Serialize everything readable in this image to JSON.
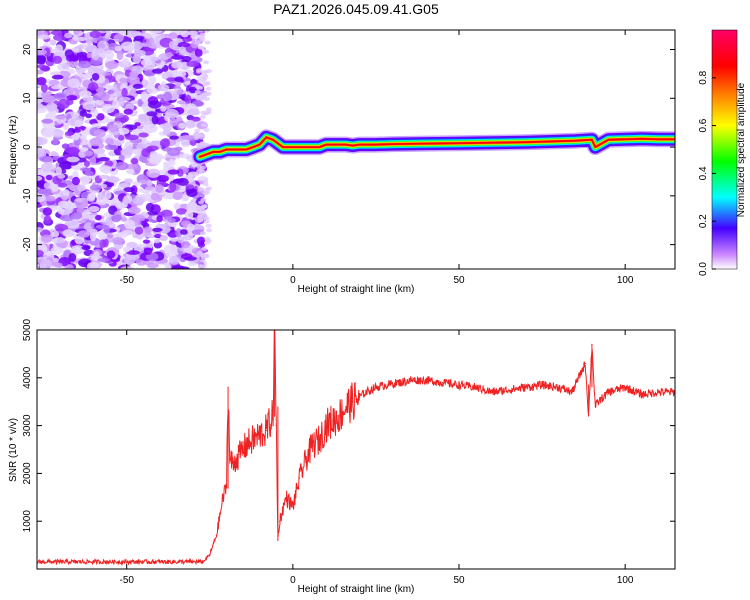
{
  "title": "PAZ1.2026.045.09.41.G05",
  "chart_data": [
    {
      "type": "heatmap",
      "name": "spectrogram",
      "xlabel": "Height of straight line (km)",
      "ylabel": "Frequency (Hz)",
      "xlim": [
        -77,
        115
      ],
      "ylim": [
        -25,
        24
      ],
      "xticks": [
        "-50",
        "0",
        "50",
        "100"
      ],
      "xtick_values": [
        -50,
        0,
        50,
        100
      ],
      "yticks": [
        "20",
        "10",
        "0",
        "-10",
        "-20"
      ],
      "ytick_values": [
        20,
        10,
        0,
        -10,
        -20
      ],
      "noise_region_km": [
        -77,
        -27
      ],
      "signal_track": {
        "x": [
          -28,
          -26,
          -24,
          -22,
          -20,
          -18,
          -16,
          -14,
          -12,
          -10,
          -8,
          -6,
          -5,
          -3,
          -1,
          1,
          3,
          5,
          8,
          10,
          12,
          14,
          16,
          18,
          20,
          25,
          30,
          40,
          50,
          60,
          70,
          80,
          85,
          90,
          91,
          95,
          100,
          105,
          110,
          115
        ],
        "y": [
          -2,
          -1.5,
          -1,
          -1,
          -0.5,
          -0.5,
          -0.5,
          -0.5,
          0,
          0.5,
          2,
          1.5,
          1,
          0,
          0,
          0,
          0,
          0,
          0,
          0.5,
          0.5,
          0.5,
          0.5,
          0.3,
          0.5,
          0.5,
          0.6,
          0.7,
          0.8,
          0.9,
          1.0,
          1.2,
          1.3,
          1.5,
          0,
          1.5,
          1.6,
          1.7,
          1.6,
          1.6
        ]
      },
      "colorbar": {
        "label": "Normalized spectral amplitude",
        "ticks": [
          "0.0",
          "0.2",
          "0.4",
          "0.6",
          "0.8"
        ],
        "tick_values": [
          0.0,
          0.2,
          0.4,
          0.6,
          0.8
        ],
        "range": [
          0,
          1
        ],
        "colors": [
          "#ffffff",
          "#cc88ff",
          "#4400ff",
          "#00ffff",
          "#00ff00",
          "#ffff00",
          "#ff8800",
          "#ff0000",
          "#ff0066"
        ]
      }
    },
    {
      "type": "line",
      "name": "snr",
      "xlabel": "Height of straight line (km)",
      "ylabel": "SNR (10 * v/v)",
      "xlim": [
        -77,
        115
      ],
      "ylim": [
        0,
        5000
      ],
      "xticks": [
        "-50",
        "0",
        "50",
        "100"
      ],
      "xtick_values": [
        -50,
        0,
        50,
        100
      ],
      "yticks": [
        "5000",
        "4000",
        "3000",
        "2000",
        "1000"
      ],
      "ytick_values": [
        5000,
        4000,
        3000,
        2000,
        1000
      ],
      "line_color": "#ee2222",
      "x": [
        -77,
        -60,
        -40,
        -27,
        -25,
        -23,
        -22,
        -21,
        -20,
        -19.5,
        -19,
        -18,
        -16,
        -14,
        -12,
        -10,
        -8,
        -6,
        -5.5,
        -5,
        -4.5,
        -4,
        -2,
        0,
        2,
        4,
        6,
        8,
        10,
        12,
        14,
        16,
        18,
        20,
        22,
        25,
        28,
        32,
        36,
        40,
        45,
        50,
        55,
        60,
        65,
        70,
        75,
        80,
        84,
        86,
        88,
        89,
        90,
        91,
        92,
        95,
        100,
        105,
        110,
        115
      ],
      "y": [
        150,
        150,
        150,
        150,
        300,
        700,
        1100,
        1500,
        1700,
        3800,
        2300,
        2200,
        2400,
        2600,
        2700,
        2800,
        2900,
        3200,
        5000,
        3000,
        600,
        1000,
        1500,
        1300,
        1900,
        2300,
        2600,
        2700,
        3000,
        3100,
        3200,
        3400,
        3500,
        3600,
        3700,
        3800,
        3850,
        3900,
        3950,
        3950,
        3900,
        3850,
        3800,
        3700,
        3750,
        3800,
        3850,
        3800,
        3700,
        4000,
        4300,
        3200,
        4700,
        3400,
        3500,
        3700,
        3800,
        3650,
        3700,
        3700
      ]
    }
  ]
}
